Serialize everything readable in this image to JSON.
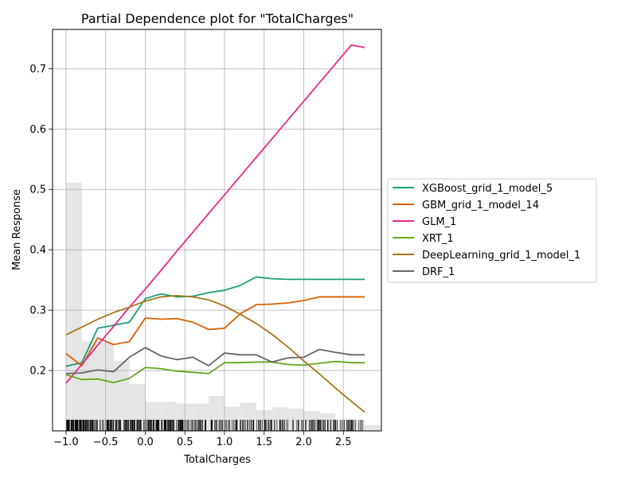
{
  "chart_data": {
    "type": "line",
    "title": "Partial Dependence plot for \"TotalCharges\"",
    "xlabel": "TotalCharges",
    "ylabel": "Mean Response",
    "xlim": [
      -1.17,
      2.98
    ],
    "ylim": [
      0.1,
      0.765
    ],
    "xticks": [
      -1.0,
      -0.5,
      0.0,
      0.5,
      1.0,
      1.5,
      2.0,
      2.5
    ],
    "xtick_labels": [
      "−1.0",
      "−0.5",
      "0.0",
      "0.5",
      "1.0",
      "1.5",
      "2.0",
      "2.5"
    ],
    "yticks": [
      0.2,
      0.3,
      0.4,
      0.5,
      0.6,
      0.7
    ],
    "ytick_labels": [
      "0.2",
      "0.3",
      "0.4",
      "0.5",
      "0.6",
      "0.7"
    ],
    "grid": true,
    "legend_position": "right",
    "x": [
      -1.0,
      -0.8,
      -0.6,
      -0.4,
      -0.2,
      0.0,
      0.2,
      0.4,
      0.6,
      0.8,
      1.0,
      1.2,
      1.4,
      1.6,
      1.8,
      2.0,
      2.2,
      2.4,
      2.6,
      2.77
    ],
    "series": [
      {
        "name": "XGBoost_grid_1_model_5",
        "color": "#1b9e77",
        "values": [
          0.207,
          0.213,
          0.27,
          0.275,
          0.28,
          0.319,
          0.327,
          0.322,
          0.323,
          0.329,
          0.333,
          0.341,
          0.355,
          0.352,
          0.351,
          0.351,
          0.351,
          0.351,
          0.351,
          0.351
        ]
      },
      {
        "name": "GBM_grid_1_model_14",
        "color": "#d95f02",
        "values": [
          0.228,
          0.208,
          0.254,
          0.243,
          0.248,
          0.287,
          0.285,
          0.286,
          0.28,
          0.268,
          0.27,
          0.294,
          0.309,
          0.31,
          0.312,
          0.316,
          0.322,
          0.322,
          0.322,
          0.322
        ]
      },
      {
        "name": "GLM_1",
        "color": "#e7298a",
        "values": [
          0.179,
          0.21,
          0.242,
          0.273,
          0.305,
          0.335,
          0.366,
          0.398,
          0.429,
          0.46,
          0.491,
          0.522,
          0.553,
          0.584,
          0.615,
          0.646,
          0.677,
          0.708,
          0.739,
          0.735
        ]
      },
      {
        "name": "XRT_1",
        "color": "#66a61e",
        "values": [
          0.193,
          0.185,
          0.186,
          0.18,
          0.187,
          0.205,
          0.203,
          0.199,
          0.197,
          0.195,
          0.213,
          0.213,
          0.214,
          0.214,
          0.21,
          0.209,
          0.212,
          0.215,
          0.213,
          0.213
        ]
      },
      {
        "name": "DeepLearning_grid_1_model_1",
        "color": "#a6761d",
        "values": [
          0.259,
          0.272,
          0.285,
          0.296,
          0.305,
          0.315,
          0.322,
          0.324,
          0.322,
          0.317,
          0.307,
          0.293,
          0.278,
          0.26,
          0.239,
          0.216,
          0.194,
          0.171,
          0.149,
          0.131
        ]
      },
      {
        "name": "DRF_1",
        "color": "#666666",
        "values": [
          0.195,
          0.196,
          0.201,
          0.198,
          0.222,
          0.238,
          0.224,
          0.218,
          0.222,
          0.208,
          0.229,
          0.226,
          0.226,
          0.214,
          0.221,
          0.222,
          0.235,
          0.23,
          0.226,
          0.226
        ]
      }
    ],
    "histogram": {
      "bin_edges": [
        -1.0,
        -0.8,
        -0.6,
        -0.4,
        -0.2,
        0.0,
        0.2,
        0.4,
        0.6,
        0.8,
        1.0,
        1.2,
        1.4,
        1.6,
        1.8,
        2.0,
        2.2,
        2.4,
        2.6,
        2.77
      ],
      "heights": [
        0.511,
        0.248,
        0.247,
        0.216,
        0.178,
        0.148,
        0.148,
        0.145,
        0.145,
        0.158,
        0.14,
        0.147,
        0.134,
        0.139,
        0.137,
        0.133,
        0.129,
        0.118,
        0.118,
        0.11
      ]
    }
  }
}
